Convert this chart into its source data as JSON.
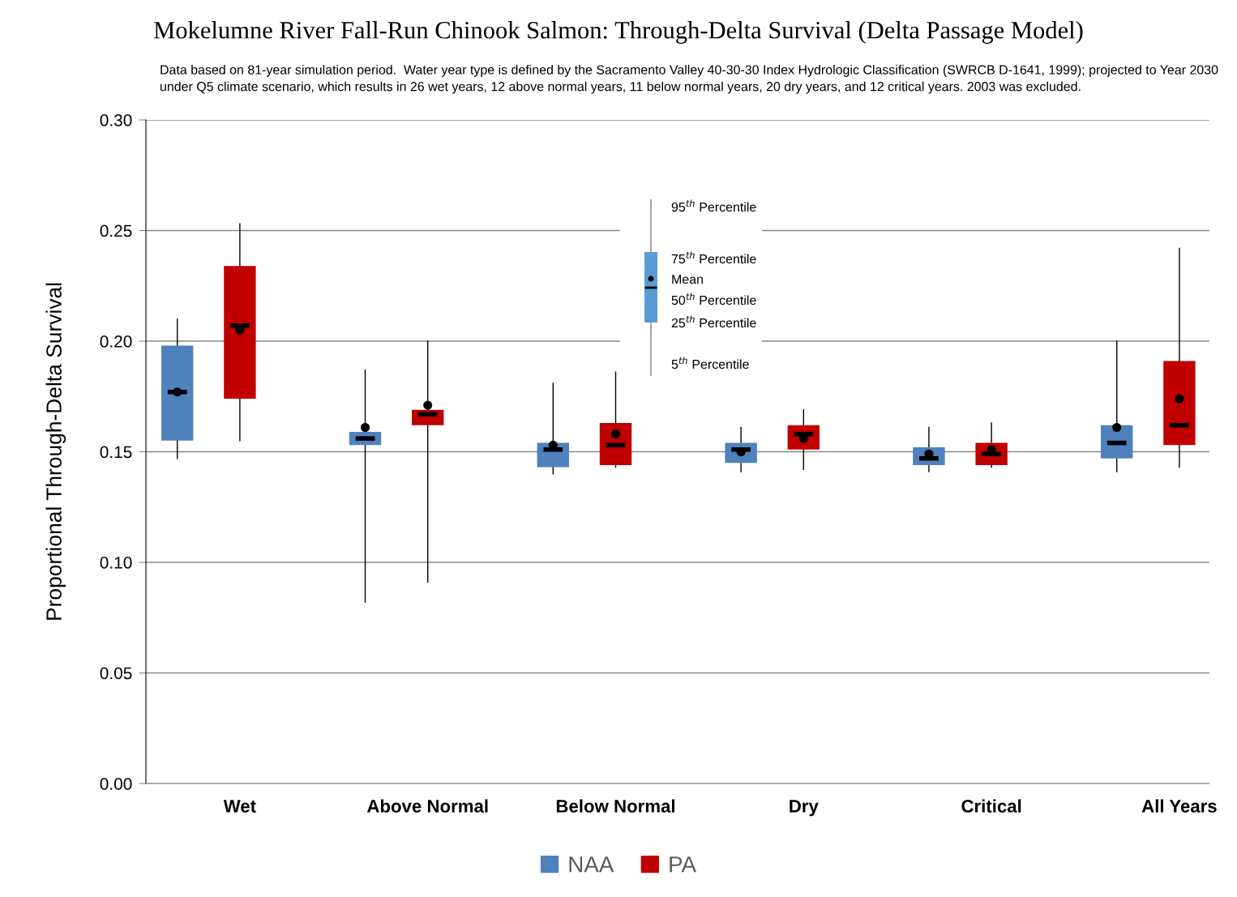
{
  "chart_data": {
    "type": "box",
    "title": "Mokelumne River Fall-Run Chinook Salmon: Through-Delta Survival (Delta Passage Model)",
    "subtitle": "Data based on 81-year simulation period.  Water year type is defined by the Sacramento Valley 40-30-30 Index Hydrologic Classification (SWRCB D-1641, 1999); projected to Year 2030 under Q5 climate scenario, which results in 26 wet years, 12 above normal years, 11 below normal years, 20 dry years, and 12 critical years. 2003 was excluded.",
    "ylabel": "Proportional Through-Delta Survival",
    "categories": [
      "Wet",
      "Above Normal",
      "Below Normal",
      "Dry",
      "Critical",
      "All Years"
    ],
    "series": [
      {
        "name": "NAA",
        "color": "#4f81bd",
        "boxes": [
          {
            "low": 0.147,
            "q1": 0.155,
            "median": 0.177,
            "q3": 0.198,
            "high": 0.21,
            "mean": 0.177
          },
          {
            "low": 0.082,
            "q1": 0.153,
            "median": 0.156,
            "q3": 0.159,
            "high": 0.187,
            "mean": 0.161
          },
          {
            "low": 0.14,
            "q1": 0.143,
            "median": 0.151,
            "q3": 0.154,
            "high": 0.181,
            "mean": 0.153
          },
          {
            "low": 0.141,
            "q1": 0.145,
            "median": 0.151,
            "q3": 0.154,
            "high": 0.161,
            "mean": 0.15
          },
          {
            "low": 0.141,
            "q1": 0.144,
            "median": 0.147,
            "q3": 0.152,
            "high": 0.161,
            "mean": 0.149
          },
          {
            "low": 0.141,
            "q1": 0.147,
            "median": 0.154,
            "q3": 0.162,
            "high": 0.2,
            "mean": 0.161
          }
        ]
      },
      {
        "name": "PA",
        "color": "#c00000",
        "boxes": [
          {
            "low": 0.155,
            "q1": 0.174,
            "median": 0.207,
            "q3": 0.234,
            "high": 0.253,
            "mean": 0.205
          },
          {
            "low": 0.091,
            "q1": 0.162,
            "median": 0.167,
            "q3": 0.169,
            "high": 0.2,
            "mean": 0.171
          },
          {
            "low": 0.143,
            "q1": 0.144,
            "median": 0.153,
            "q3": 0.163,
            "high": 0.186,
            "mean": 0.158
          },
          {
            "low": 0.142,
            "q1": 0.151,
            "median": 0.158,
            "q3": 0.162,
            "high": 0.169,
            "mean": 0.156
          },
          {
            "low": 0.143,
            "q1": 0.144,
            "median": 0.149,
            "q3": 0.154,
            "high": 0.163,
            "mean": 0.151
          },
          {
            "low": 0.143,
            "q1": 0.153,
            "median": 0.162,
            "q3": 0.191,
            "high": 0.242,
            "mean": 0.174
          }
        ]
      }
    ],
    "ylim": [
      0,
      0.3
    ],
    "yticks": [
      {
        "value": 0,
        "label": "0.00"
      },
      {
        "value": 0.05,
        "label": "0.05"
      },
      {
        "value": 0.1,
        "label": "0.10"
      },
      {
        "value": 0.15,
        "label": "0.15"
      },
      {
        "value": 0.2,
        "label": "0.20"
      },
      {
        "value": 0.25,
        "label": "0.25"
      },
      {
        "value": 0.3,
        "label": "0.30"
      }
    ],
    "annotations": [
      "95$^{th}$ Percentile",
      "75$^{th}$ Percentile",
      "Mean",
      "50$^{th}$ Percentile",
      "25$^{th}$ Percentile",
      "5$^{th}$ Percentile"
    ],
    "grid": "y",
    "legend": "bottom"
  }
}
